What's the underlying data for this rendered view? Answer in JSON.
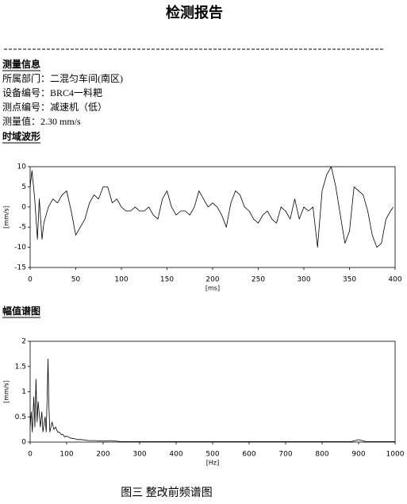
{
  "title": "检测报告",
  "info": {
    "heading": "测量信息",
    "lines": [
      "所属部门：二混匀车间(南区)",
      "设备编号：BRC4一料耙",
      "测点编号：减速机（低）",
      "测量值：2.30 mm/s"
    ]
  },
  "chart_data": [
    {
      "type": "line",
      "title": "时域波形",
      "y_label": "[mm/s]",
      "x_label": "[ms]",
      "color": "#000000",
      "xlim": [
        0,
        400
      ],
      "xticks": [
        0,
        50,
        100,
        150,
        200,
        250,
        300,
        350,
        400
      ],
      "ylim": [
        -15,
        10
      ],
      "yticks": [
        -15,
        -10,
        -5,
        0,
        5,
        10
      ],
      "x": [
        0,
        2,
        5,
        8,
        10,
        13,
        15,
        20,
        25,
        30,
        35,
        40,
        45,
        50,
        55,
        60,
        65,
        70,
        75,
        80,
        85,
        90,
        95,
        100,
        105,
        110,
        115,
        120,
        125,
        130,
        135,
        140,
        145,
        150,
        155,
        160,
        165,
        170,
        175,
        180,
        185,
        190,
        195,
        200,
        205,
        210,
        215,
        220,
        225,
        230,
        235,
        240,
        245,
        250,
        255,
        260,
        265,
        270,
        275,
        280,
        285,
        290,
        295,
        300,
        305,
        310,
        315,
        320,
        325,
        330,
        335,
        340,
        345,
        350,
        355,
        360,
        365,
        370,
        375,
        380,
        385,
        390,
        395,
        398
      ],
      "values": [
        5,
        9,
        2,
        -8,
        2,
        -8,
        -4,
        0,
        2,
        1,
        3,
        4,
        -1,
        -7,
        -5,
        -3,
        1,
        3,
        2,
        5,
        5,
        1,
        2,
        0,
        -1,
        -1,
        0,
        -1,
        -1,
        0,
        -2,
        -3,
        2,
        4,
        0,
        -2,
        -1,
        -1,
        -2,
        0,
        4,
        2,
        0,
        1,
        0,
        -2,
        -5,
        1,
        4,
        3,
        0,
        -1,
        -3,
        -4,
        -2,
        -1,
        -3,
        -4,
        0,
        -1,
        -3,
        2,
        -3,
        0,
        -1,
        0,
        -10,
        4,
        8,
        10,
        5,
        -2,
        -9,
        -6,
        5,
        4,
        3,
        -1,
        -7,
        -10,
        -9,
        -3,
        -1,
        0
      ]
    },
    {
      "type": "line",
      "title": "幅值谱图",
      "y_label": "[mm/s]",
      "x_label": "[Hz]",
      "color": "#000000",
      "xlim": [
        0,
        1000
      ],
      "xticks": [
        0,
        100,
        200,
        300,
        400,
        500,
        600,
        700,
        800,
        900,
        1000
      ],
      "ylim": [
        0,
        2
      ],
      "yticks": [
        0,
        0.5,
        1,
        1.5,
        2
      ],
      "x": [
        0,
        3,
        6,
        10,
        13,
        16,
        19,
        22,
        25,
        28,
        32,
        35,
        38,
        41,
        44,
        47,
        49,
        51,
        54,
        57,
        60,
        65,
        70,
        75,
        80,
        85,
        90,
        95,
        100,
        110,
        120,
        130,
        140,
        160,
        180,
        200,
        220,
        250,
        300,
        400,
        500,
        600,
        700,
        800,
        880,
        900,
        920,
        1000
      ],
      "values": [
        0.3,
        0.6,
        0.2,
        0.9,
        0.3,
        1.25,
        0.4,
        0.8,
        0.55,
        0.3,
        0.6,
        0.2,
        0.35,
        0.5,
        0.2,
        1.0,
        1.65,
        0.8,
        0.2,
        0.3,
        0.4,
        0.25,
        0.3,
        0.2,
        0.2,
        0.15,
        0.15,
        0.1,
        0.12,
        0.08,
        0.07,
        0.05,
        0.05,
        0.03,
        0.03,
        0.02,
        0.03,
        0.01,
        0.01,
        0.01,
        0.01,
        0.01,
        0.01,
        0.01,
        0.01,
        0.05,
        0.01,
        0.01
      ]
    }
  ],
  "caption": "图三  整改前频谱图"
}
